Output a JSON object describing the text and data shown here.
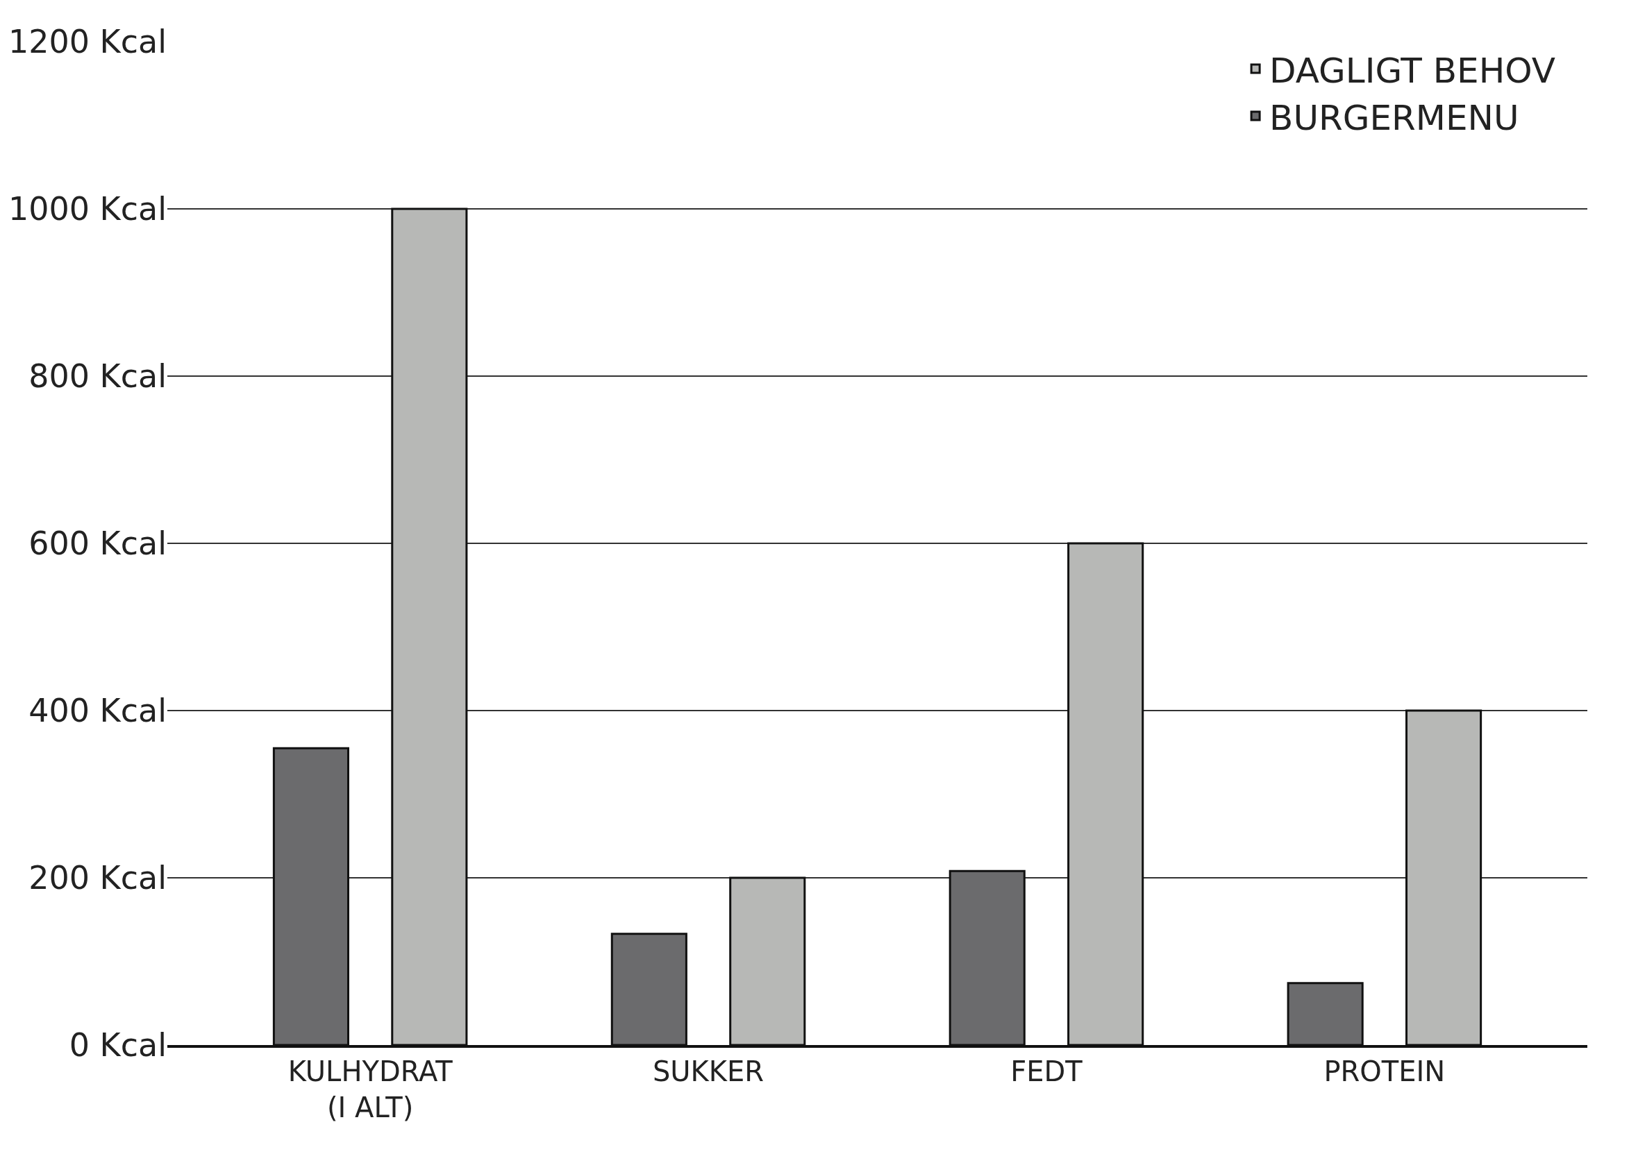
{
  "chart_data": {
    "type": "bar",
    "categories": [
      "KULHYDRAT\n(I ALT)",
      "SUKKER",
      "FEDT",
      "PROTEIN"
    ],
    "series": [
      {
        "name": "BURGERMENU",
        "color": "#6b6b6d",
        "values": [
          355,
          133,
          208,
          74
        ]
      },
      {
        "name": "DAGLIGT BEHOV",
        "color": "#b7b8b6",
        "values": [
          1000,
          200,
          600,
          400
        ]
      }
    ],
    "ylim": [
      0,
      1200
    ],
    "yticks": [
      {
        "value": 0,
        "label": "0 Kcal"
      },
      {
        "value": 200,
        "label": "200 Kcal"
      },
      {
        "value": 400,
        "label": "400 Kcal"
      },
      {
        "value": 600,
        "label": "600 Kcal"
      },
      {
        "value": 800,
        "label": "800 Kcal"
      },
      {
        "value": 1000,
        "label": "1000 Kcal"
      },
      {
        "value": 1200,
        "label": "1200 Kcal"
      }
    ],
    "grid": "y",
    "legend": "top right"
  }
}
